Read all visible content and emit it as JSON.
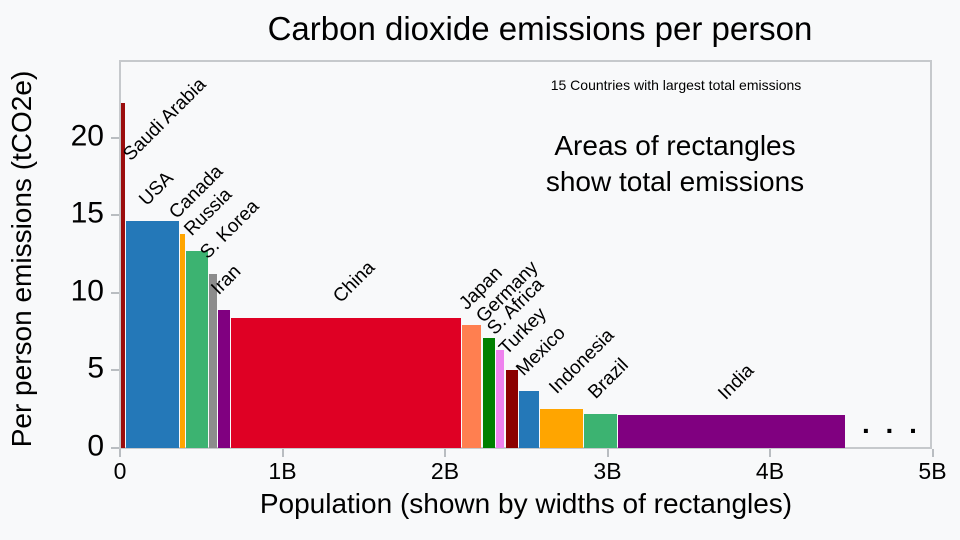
{
  "title": "Carbon dioxide emissions per person",
  "annotations": {
    "countries_note": "15 Countries with largest total emissions",
    "area_note_line1": "Areas of rectangles",
    "area_note_line2": "show total emissions",
    "ellipsis": ". . ."
  },
  "chart_data": {
    "type": "bar",
    "variant": "variable-width bars: width = population, height = per-person emissions, area = total emissions",
    "title": "Carbon dioxide emissions per person",
    "xlabel": "Population (shown by widths of rectangles)",
    "ylabel": "Per person emissions (tCO2e)",
    "x_tick_labels": [
      "0",
      "1B",
      "2B",
      "3B",
      "4B",
      "5B"
    ],
    "x_tick_values_billions": [
      0,
      1,
      2,
      3,
      4,
      5
    ],
    "y_ticks": [
      0,
      5,
      10,
      15,
      20
    ],
    "xlim_billions": [
      0,
      5
    ],
    "ylim": [
      0,
      25
    ],
    "grid": false,
    "legend": "none",
    "countries": [
      {
        "name": "Saudi Arabia",
        "population_millions": 34,
        "per_person_tco2e": 22.2,
        "color": "#9b0d0d"
      },
      {
        "name": "USA",
        "population_millions": 330,
        "per_person_tco2e": 14.6,
        "color": "#2478b8"
      },
      {
        "name": "Canada",
        "population_millions": 37,
        "per_person_tco2e": 13.8,
        "color": "#ffa500"
      },
      {
        "name": "Russia",
        "population_millions": 146,
        "per_person_tco2e": 12.7,
        "color": "#3cb371"
      },
      {
        "name": "S. Korea",
        "population_millions": 51,
        "per_person_tco2e": 11.2,
        "color": "#8c8c8c"
      },
      {
        "name": "Iran",
        "population_millions": 83,
        "per_person_tco2e": 8.9,
        "color": "#800080"
      },
      {
        "name": "China",
        "population_millions": 1420,
        "per_person_tco2e": 8.4,
        "color": "#df0024"
      },
      {
        "name": "Japan",
        "population_millions": 127,
        "per_person_tco2e": 7.9,
        "color": "#ff7f50"
      },
      {
        "name": "Germany",
        "population_millions": 83,
        "per_person_tco2e": 7.1,
        "color": "#008000"
      },
      {
        "name": "S. Africa",
        "population_millions": 58,
        "per_person_tco2e": 6.3,
        "color": "#ee82ee"
      },
      {
        "name": "Turkey",
        "population_millions": 83,
        "per_person_tco2e": 5.0,
        "color": "#8b0000"
      },
      {
        "name": "Mexico",
        "population_millions": 131,
        "per_person_tco2e": 3.7,
        "color": "#2478b8"
      },
      {
        "name": "Indonesia",
        "population_millions": 269,
        "per_person_tco2e": 2.5,
        "color": "#ffa500"
      },
      {
        "name": "Brazil",
        "population_millions": 211,
        "per_person_tco2e": 2.2,
        "color": "#3cb371"
      },
      {
        "name": "India",
        "population_millions": 1400,
        "per_person_tco2e": 2.1,
        "color": "#800080"
      }
    ]
  },
  "colors": {
    "background": "#f8f9fa",
    "axis_spine": "#c6c9cc",
    "tick_mark": "#b9bdc1",
    "text": "#000000"
  }
}
